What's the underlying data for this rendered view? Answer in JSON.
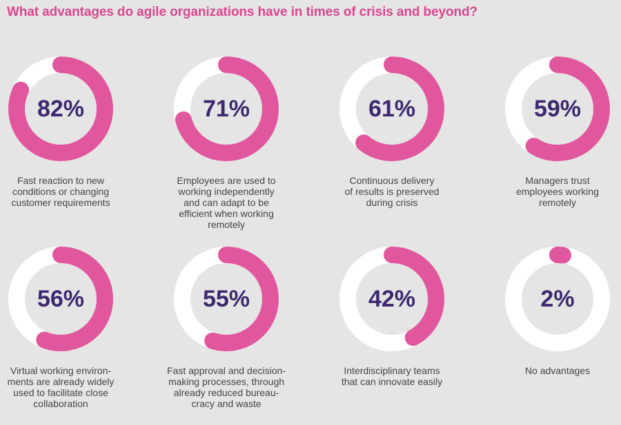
{
  "title": "What advantages do agile organizations have in times of crisis and beyond?",
  "colors": {
    "background": "#e5e5e5",
    "ring_track": "#ffffff",
    "ring_fill": "#e0579d",
    "value_text": "#3d2870",
    "title_text": "#d9478f"
  },
  "chart_data": {
    "type": "pie",
    "title": "What advantages do agile organizations have in times of crisis and beyond?",
    "unit": "%",
    "categories": [
      "Fast reaction to new conditions or changing customer requirements",
      "Employees are used to working independently and can adapt to be efficient when working remotely",
      "Continuous delivery of results is preserved during crisis",
      "Managers trust employees working remotely",
      "Virtual working environments are already widely used to facilitate close collaboration",
      "Fast approval and decision-making processes, through already reduced bureaucracy and waste",
      "Interdisciplinary teams that can innovate easily",
      "No advantages"
    ],
    "values": [
      82,
      71,
      61,
      59,
      56,
      55,
      42,
      2
    ],
    "items": [
      {
        "value": 82,
        "label": "82%",
        "desc": "Fast reaction to new\nconditions or changing\ncustomer requirements"
      },
      {
        "value": 71,
        "label": "71%",
        "desc": "Employees are used to\nworking independently\nand can adapt to be\nefficient when working\nremotely"
      },
      {
        "value": 61,
        "label": "61%",
        "desc": "Continuous delivery\nof results is preserved\nduring crisis"
      },
      {
        "value": 59,
        "label": "59%",
        "desc": "Managers trust\nemployees working\nremotely"
      },
      {
        "value": 56,
        "label": "56%",
        "desc": "Virtual working environ-\nments are already widely\nused to facilitate close\ncollaboration"
      },
      {
        "value": 55,
        "label": "55%",
        "desc": "Fast approval and decision-\nmaking processes, through\nalready reduced bureau-\ncracy and waste"
      },
      {
        "value": 42,
        "label": "42%",
        "desc": "Interdisciplinary teams\nthat can innovate easily"
      },
      {
        "value": 2,
        "label": "2%",
        "desc": "No advantages"
      }
    ]
  }
}
